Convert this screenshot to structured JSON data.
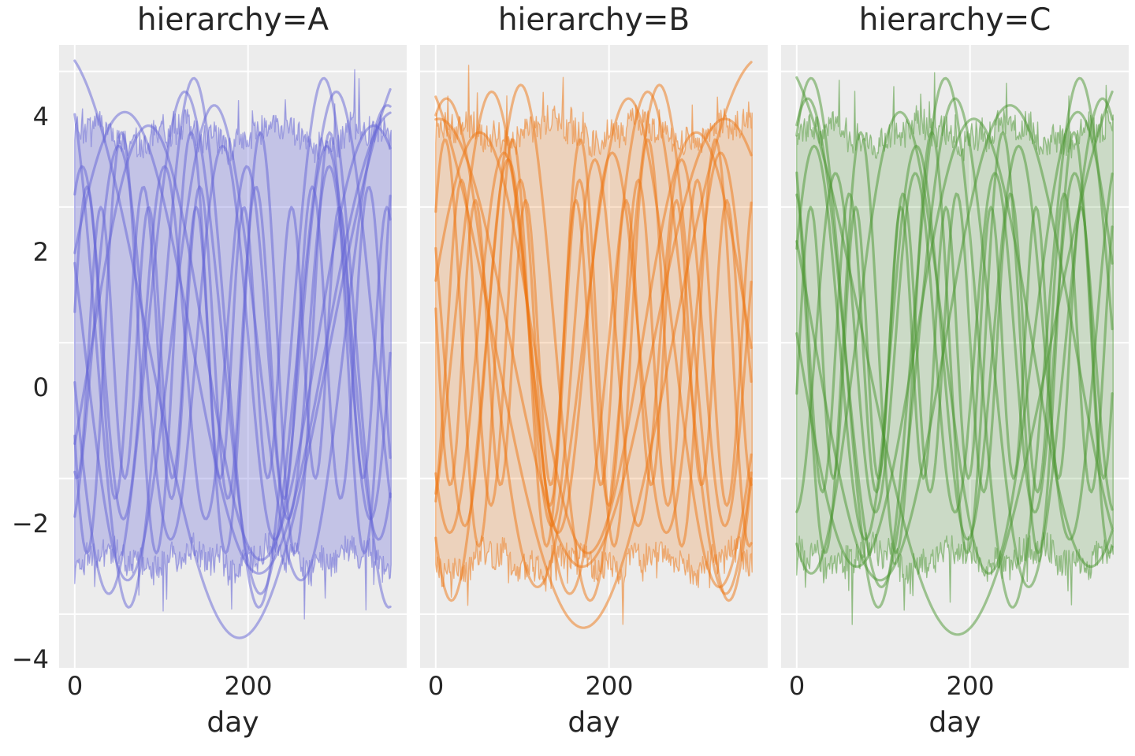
{
  "figure": {
    "background": "#ffffff",
    "panel_background": "#ececec",
    "grid_color": "#ffffff",
    "text_color": "#262626"
  },
  "axes": {
    "x_label": "day",
    "x_ticks": [
      0,
      200
    ],
    "x_tick_labels": [
      "0",
      "200"
    ],
    "y_ticks": [
      4,
      2,
      0,
      -2,
      -4
    ],
    "y_tick_labels": [
      "4",
      "2",
      "0",
      "−2",
      "−4"
    ],
    "xlim": [
      -18,
      383
    ],
    "ylim": [
      -4.79,
      4.39
    ],
    "grid": true,
    "legend": "none"
  },
  "chart_data": {
    "type": "line",
    "facet_variable": "hierarchy",
    "x_variable": "day",
    "x_range": [
      0,
      365
    ],
    "description": "Three facet panels of many overlapping sinusoidal series plus a noisy min/max envelope band",
    "facets": [
      {
        "value": "A",
        "title": "hierarchy=A",
        "color": "#6464d6",
        "fill_opacity": 0.3,
        "line_opacity": 0.5,
        "band": {
          "top": 3.05,
          "bottom": -3.18,
          "noise": 0.45,
          "spike": 0.75,
          "spike_prob": 0.05,
          "seed": 7
        },
        "series": [
          {
            "amplitude": 3.4,
            "period": 310,
            "phase": 0.4
          },
          {
            "amplitude": 3.9,
            "period": 150,
            "phase": 2.1
          },
          {
            "amplitude": 4.35,
            "period": 420,
            "phase": 1.87
          },
          {
            "amplitude": 2.6,
            "period": 95,
            "phase": 1.0
          },
          {
            "amplitude": 3.1,
            "period": 80,
            "phase": 3.6
          },
          {
            "amplitude": 2.9,
            "period": 120,
            "phase": 5.2
          },
          {
            "amplitude": 3.5,
            "period": 200,
            "phase": 2.8
          },
          {
            "amplitude": 2.3,
            "period": 65,
            "phase": 0.2
          },
          {
            "amplitude": 3.2,
            "period": 260,
            "phase": 5.8
          },
          {
            "amplitude": 2.0,
            "period": 55,
            "phase": 4.4
          },
          {
            "amplitude": 3.7,
            "period": 175,
            "phase": 3.3
          }
        ]
      },
      {
        "value": "B",
        "title": "hierarchy=B",
        "color": "#ee7512",
        "fill_opacity": 0.22,
        "line_opacity": 0.5,
        "band": {
          "top": 3.1,
          "bottom": -3.22,
          "noise": 0.45,
          "spike": 0.75,
          "spike_prob": 0.05,
          "seed": 19
        },
        "series": [
          {
            "amplitude": 3.3,
            "period": 330,
            "phase": 1.5
          },
          {
            "amplitude": 3.8,
            "period": 160,
            "phase": 4.0
          },
          {
            "amplitude": 4.2,
            "period": 410,
            "phase": 2.1
          },
          {
            "amplitude": 2.7,
            "period": 100,
            "phase": 2.6
          },
          {
            "amplitude": 3.0,
            "period": 78,
            "phase": 0.7
          },
          {
            "amplitude": 2.8,
            "period": 125,
            "phase": 3.9
          },
          {
            "amplitude": 3.6,
            "period": 210,
            "phase": 1.2
          },
          {
            "amplitude": 2.4,
            "period": 68,
            "phase": 5.1
          },
          {
            "amplitude": 3.1,
            "period": 250,
            "phase": 0.3
          },
          {
            "amplitude": 2.1,
            "period": 58,
            "phase": 2.9
          },
          {
            "amplitude": 3.7,
            "period": 180,
            "phase": 5.6
          }
        ]
      },
      {
        "value": "C",
        "title": "hierarchy=C",
        "color": "#499630",
        "fill_opacity": 0.2,
        "line_opacity": 0.5,
        "band": {
          "top": 3.08,
          "bottom": -3.15,
          "noise": 0.45,
          "spike": 0.75,
          "spike_prob": 0.05,
          "seed": 31
        },
        "series": [
          {
            "amplitude": 3.5,
            "period": 300,
            "phase": 2.7
          },
          {
            "amplitude": 3.9,
            "period": 155,
            "phase": 0.9
          },
          {
            "amplitude": 4.3,
            "period": 430,
            "phase": 2.0
          },
          {
            "amplitude": 2.5,
            "period": 92,
            "phase": 4.8
          },
          {
            "amplitude": 3.1,
            "period": 82,
            "phase": 2.2
          },
          {
            "amplitude": 2.9,
            "period": 118,
            "phase": 0.5
          },
          {
            "amplitude": 3.4,
            "period": 205,
            "phase": 4.2
          },
          {
            "amplitude": 2.2,
            "period": 62,
            "phase": 1.7
          },
          {
            "amplitude": 3.3,
            "period": 270,
            "phase": 3.1
          },
          {
            "amplitude": 2.0,
            "period": 52,
            "phase": 5.9
          },
          {
            "amplitude": 3.6,
            "period": 170,
            "phase": 1.1
          }
        ]
      }
    ]
  }
}
